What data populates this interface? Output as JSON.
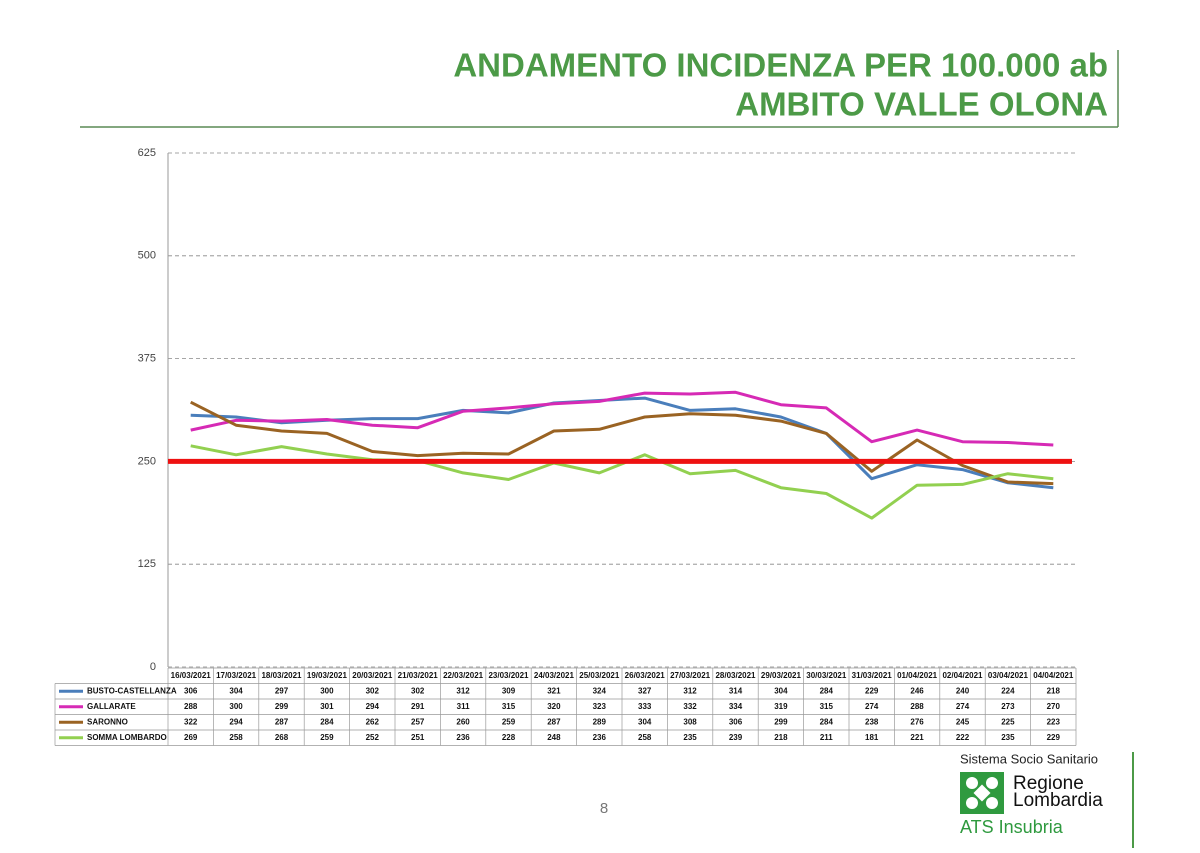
{
  "chart_data": {
    "type": "line",
    "title": [
      "ANDAMENTO INCIDENZA PER 100.000 ab",
      "AMBITO VALLE OLONA"
    ],
    "categories": [
      "16/03/2021",
      "17/03/2021",
      "18/03/2021",
      "19/03/2021",
      "20/03/2021",
      "21/03/2021",
      "22/03/2021",
      "23/03/2021",
      "24/03/2021",
      "25/03/2021",
      "26/03/2021",
      "27/03/2021",
      "28/03/2021",
      "29/03/2021",
      "30/03/2021",
      "31/03/2021",
      "01/04/2021",
      "02/04/2021",
      "03/04/2021",
      "04/04/2021"
    ],
    "series": [
      {
        "name": "BUSTO-CASTELLANZA",
        "color": "#4a7ebb",
        "values": [
          306,
          304,
          297,
          300,
          302,
          302,
          312,
          309,
          321,
          324,
          327,
          312,
          314,
          304,
          284,
          229,
          246,
          240,
          224,
          218
        ]
      },
      {
        "name": "GALLARATE",
        "color": "#d62ab5",
        "values": [
          288,
          300,
          299,
          301,
          294,
          291,
          311,
          315,
          320,
          323,
          333,
          332,
          334,
          319,
          315,
          274,
          288,
          274,
          273,
          270
        ]
      },
      {
        "name": "SARONNO",
        "color": "#9a6323",
        "values": [
          322,
          294,
          287,
          284,
          262,
          257,
          260,
          259,
          287,
          289,
          304,
          308,
          306,
          299,
          284,
          238,
          276,
          245,
          225,
          223
        ]
      },
      {
        "name": "SOMMA LOMBARDO",
        "color": "#92d050",
        "values": [
          269,
          258,
          268,
          259,
          252,
          251,
          236,
          228,
          248,
          236,
          258,
          235,
          239,
          218,
          211,
          181,
          221,
          222,
          235,
          229
        ]
      }
    ],
    "threshold": 250,
    "threshold_color": "#ee1111",
    "ylim": [
      0,
      625
    ],
    "yticks": [
      0,
      125,
      250,
      375,
      500,
      625
    ],
    "grid": true
  },
  "page_number": "8",
  "logo": {
    "system": "Sistema Socio Sanitario",
    "region": [
      "Regione",
      "Lombardia"
    ],
    "agency": "ATS Insubria"
  }
}
